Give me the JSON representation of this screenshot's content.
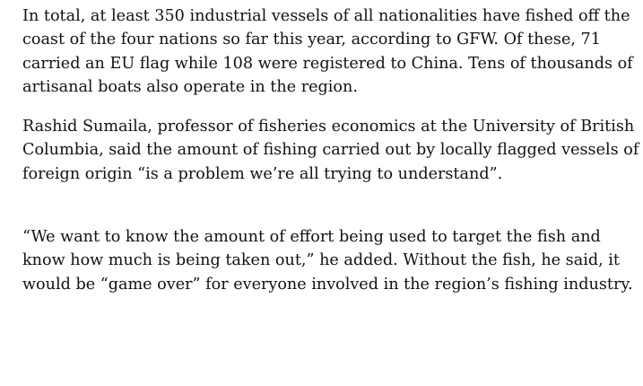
{
  "article": {
    "paragraphs": [
      {
        "lines": [
          "In total, at least 350 industrial vessels of all nationalities have fished off the",
          "coast of the four nations so far this year, according to GFW. Of these, 71",
          "carried an EU flag while 108 were registered to China. Tens of thousands of",
          "artisanal boats also operate in the region."
        ]
      },
      {
        "lines": [
          "Rashid Sumaila, professor of fisheries economics at the University of British",
          "Columbia, said the amount of fishing carried out by locally flagged vessels of",
          "foreign origin “is a problem we’re all trying to understand”."
        ]
      },
      {
        "lines": [
          "“We want to know the amount of effort being used to target the fish and",
          "know how much is being taken out,” he added. Without the fish, he said, it",
          "would be “game over” for everyone involved in the region’s fishing industry."
        ]
      }
    ]
  }
}
